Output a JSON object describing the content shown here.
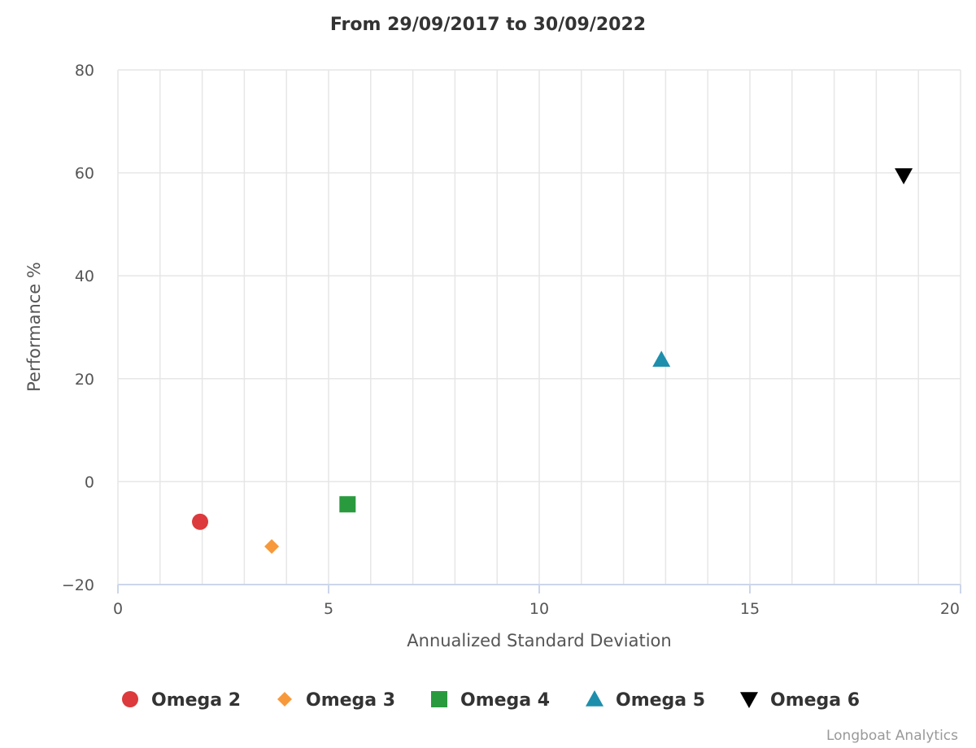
{
  "chart_data": {
    "type": "scatter",
    "title": "From 29/09/2017 to 30/09/2022",
    "xlabel": "Annualized Standard Deviation",
    "ylabel": "Performance %",
    "xlim": [
      0,
      20
    ],
    "ylim": [
      -20,
      80
    ],
    "x_ticks": [
      0,
      5,
      10,
      15,
      20
    ],
    "y_ticks": [
      -20,
      0,
      20,
      40,
      60,
      80
    ],
    "x_tick_labels": [
      "0",
      "5",
      "10",
      "15",
      "20"
    ],
    "y_tick_labels": [
      "−20",
      "0",
      "20",
      "40",
      "60",
      "80"
    ],
    "x_minor_grid_step": 1,
    "grid": true,
    "legend_position": "bottom",
    "series": [
      {
        "name": "Omega 2",
        "marker": "circle",
        "color": "#dc3a3c",
        "x": 1.95,
        "y": -7.8
      },
      {
        "name": "Omega 3",
        "marker": "diamond",
        "color": "#f7993a",
        "x": 3.65,
        "y": -12.6
      },
      {
        "name": "Omega 4",
        "marker": "square",
        "color": "#2a9a3f",
        "x": 5.45,
        "y": -4.4
      },
      {
        "name": "Omega 5",
        "marker": "triangle",
        "color": "#1d8fac",
        "x": 12.9,
        "y": 23.7
      },
      {
        "name": "Omega 6",
        "marker": "triangle-down",
        "color": "#000000",
        "x": 18.65,
        "y": 59.5
      }
    ]
  },
  "credit": "Longboat Analytics"
}
